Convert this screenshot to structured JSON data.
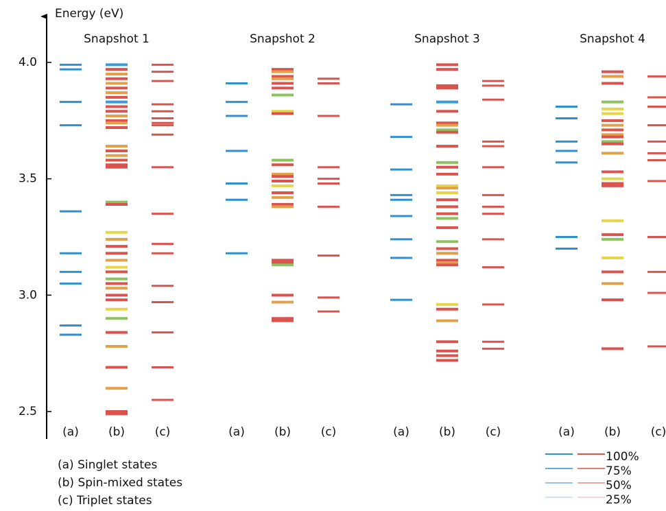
{
  "chart_data": {
    "type": "energy-levels",
    "y_label": "Energy (eV)",
    "ylim": [
      2.2,
      4.2
    ],
    "yticks": [
      {
        "value": 2.5,
        "label": "2.5"
      },
      {
        "value": 3.0,
        "label": "3.0"
      },
      {
        "value": 3.5,
        "label": "3.5"
      },
      {
        "value": 4.0,
        "label": "4.0"
      }
    ],
    "columns": [
      "(a)",
      "(b)",
      "(c)"
    ],
    "singlet_color": "#2f8fd0",
    "triplet_color": "#d9534f",
    "snapshots": [
      {
        "title": "Snapshot 1",
        "singlet": [
          3.99,
          3.97,
          3.83,
          3.73,
          3.36,
          3.18,
          3.1,
          3.05,
          2.87,
          2.83
        ],
        "mixed": [
          3.99,
          3.97,
          3.95,
          3.93,
          3.91,
          3.89,
          3.87,
          3.85,
          3.83,
          3.81,
          3.79,
          3.77,
          3.75,
          3.74,
          3.72,
          3.64,
          3.62,
          3.6,
          3.58,
          3.56,
          3.55,
          3.4,
          3.39,
          3.27,
          3.24,
          3.21,
          3.18,
          3.15,
          3.12,
          3.1,
          3.07,
          3.05,
          3.03,
          3.0,
          2.98,
          2.94,
          2.9,
          2.84,
          2.78,
          2.69,
          2.6,
          2.5,
          2.49
        ],
        "mixed_colors": [
          "#3a9ad9",
          "#d9534f",
          "#e3a04a",
          "#d9534f",
          "#e3a04a",
          "#d9534f",
          "#e3a04a",
          "#d9534f",
          "#3a9ad9",
          "#d9534f",
          "#d9534f",
          "#e3a04a",
          "#d9534f",
          "#e3a04a",
          "#d9534f",
          "#e3a04a",
          "#d9534f",
          "#e3a04a",
          "#d9534f",
          "#d9534f",
          "#d9534f",
          "#8cc35e",
          "#d9534f",
          "#e6d44a",
          "#e3a04a",
          "#d9534f",
          "#d9534f",
          "#e3a04a",
          "#e6d44a",
          "#d9534f",
          "#8cc35e",
          "#d9534f",
          "#e3a04a",
          "#d9534f",
          "#d9534f",
          "#e6d44a",
          "#8cc35e",
          "#d9534f",
          "#e3a04a",
          "#d9534f",
          "#e3a04a",
          "#d9534f",
          "#d9534f"
        ],
        "triplet": [
          3.99,
          3.96,
          3.92,
          3.82,
          3.79,
          3.76,
          3.74,
          3.73,
          3.69,
          3.55,
          3.35,
          3.22,
          3.18,
          3.04,
          2.97,
          2.84,
          2.69,
          2.55
        ]
      },
      {
        "title": "Snapshot 2",
        "singlet": [
          3.91,
          3.83,
          3.77,
          3.62,
          3.48,
          3.41,
          3.18
        ],
        "mixed": [
          3.97,
          3.96,
          3.94,
          3.93,
          3.91,
          3.89,
          3.86,
          3.79,
          3.78,
          3.58,
          3.56,
          3.52,
          3.51,
          3.49,
          3.47,
          3.44,
          3.42,
          3.39,
          3.38,
          3.15,
          3.14,
          3.13,
          3.0,
          2.97,
          2.9,
          2.89
        ],
        "mixed_colors": [
          "#d9534f",
          "#e3a04a",
          "#d9534f",
          "#e3a04a",
          "#d9534f",
          "#d9534f",
          "#8cc35e",
          "#e6d44a",
          "#d9534f",
          "#8cc35e",
          "#d9534f",
          "#e3a04a",
          "#d9534f",
          "#d9534f",
          "#e6d44a",
          "#d9534f",
          "#e3a04a",
          "#d9534f",
          "#e3a04a",
          "#d9534f",
          "#d9534f",
          "#8cc35e",
          "#d9534f",
          "#e3a04a",
          "#d9534f",
          "#d9534f"
        ],
        "triplet": [
          3.93,
          3.91,
          3.77,
          3.55,
          3.5,
          3.48,
          3.38,
          3.17,
          2.99,
          2.93
        ]
      },
      {
        "title": "Snapshot 3",
        "singlet": [
          3.82,
          3.68,
          3.54,
          3.43,
          3.41,
          3.34,
          3.24,
          3.16,
          2.98
        ],
        "mixed": [
          3.99,
          3.97,
          3.9,
          3.89,
          3.83,
          3.79,
          3.74,
          3.73,
          3.71,
          3.7,
          3.64,
          3.57,
          3.55,
          3.52,
          3.47,
          3.46,
          3.44,
          3.41,
          3.38,
          3.35,
          3.33,
          3.29,
          3.23,
          3.2,
          3.18,
          3.15,
          3.14,
          3.13,
          2.96,
          2.94,
          2.89,
          2.8,
          2.76,
          2.74,
          2.72
        ],
        "mixed_colors": [
          "#d9534f",
          "#d9534f",
          "#d9534f",
          "#d9534f",
          "#3a9ad9",
          "#d9534f",
          "#d9534f",
          "#e3a04a",
          "#8cc35e",
          "#d9534f",
          "#d9534f",
          "#8cc35e",
          "#d9534f",
          "#d9534f",
          "#e6d44a",
          "#e3a04a",
          "#e6d44a",
          "#d9534f",
          "#d9534f",
          "#d9534f",
          "#8cc35e",
          "#d9534f",
          "#8cc35e",
          "#d9534f",
          "#e3a04a",
          "#d9534f",
          "#e3a04a",
          "#d9534f",
          "#e6d44a",
          "#d9534f",
          "#e3a04a",
          "#d9534f",
          "#d9534f",
          "#d9534f",
          "#d9534f"
        ],
        "triplet": [
          3.92,
          3.9,
          3.84,
          3.66,
          3.64,
          3.55,
          3.43,
          3.38,
          3.35,
          3.24,
          3.12,
          2.96,
          2.8,
          2.77
        ]
      },
      {
        "title": "Snapshot 4",
        "singlet": [
          3.81,
          3.76,
          3.66,
          3.62,
          3.57,
          3.25,
          3.2
        ],
        "mixed": [
          3.96,
          3.94,
          3.91,
          3.83,
          3.8,
          3.78,
          3.75,
          3.73,
          3.71,
          3.69,
          3.68,
          3.66,
          3.65,
          3.61,
          3.53,
          3.5,
          3.48,
          3.47,
          3.32,
          3.26,
          3.24,
          3.16,
          3.1,
          3.05,
          2.98,
          2.77
        ],
        "mixed_colors": [
          "#d9534f",
          "#e3a04a",
          "#d9534f",
          "#8cc35e",
          "#e6d44a",
          "#e6d44a",
          "#d9534f",
          "#e3a04a",
          "#d9534f",
          "#e3a04a",
          "#d9534f",
          "#8cc35e",
          "#d9534f",
          "#e3a04a",
          "#d9534f",
          "#e6d44a",
          "#d9534f",
          "#d9534f",
          "#e6d44a",
          "#d9534f",
          "#8cc35e",
          "#e6d44a",
          "#d9534f",
          "#e3a04a",
          "#d9534f",
          "#d9534f"
        ],
        "triplet": [
          3.94,
          3.85,
          3.81,
          3.73,
          3.66,
          3.61,
          3.58,
          3.49,
          3.25,
          3.1,
          3.01,
          2.78
        ]
      }
    ],
    "legend": [
      "(a) Singlet states",
      "(b) Spin-mixed states",
      "(c) Triplet states"
    ],
    "weight_legend": [
      {
        "value": 100,
        "label": "100%"
      },
      {
        "value": 75,
        "label": "75%"
      },
      {
        "value": 50,
        "label": "50%"
      },
      {
        "value": 25,
        "label": "25%"
      }
    ]
  }
}
